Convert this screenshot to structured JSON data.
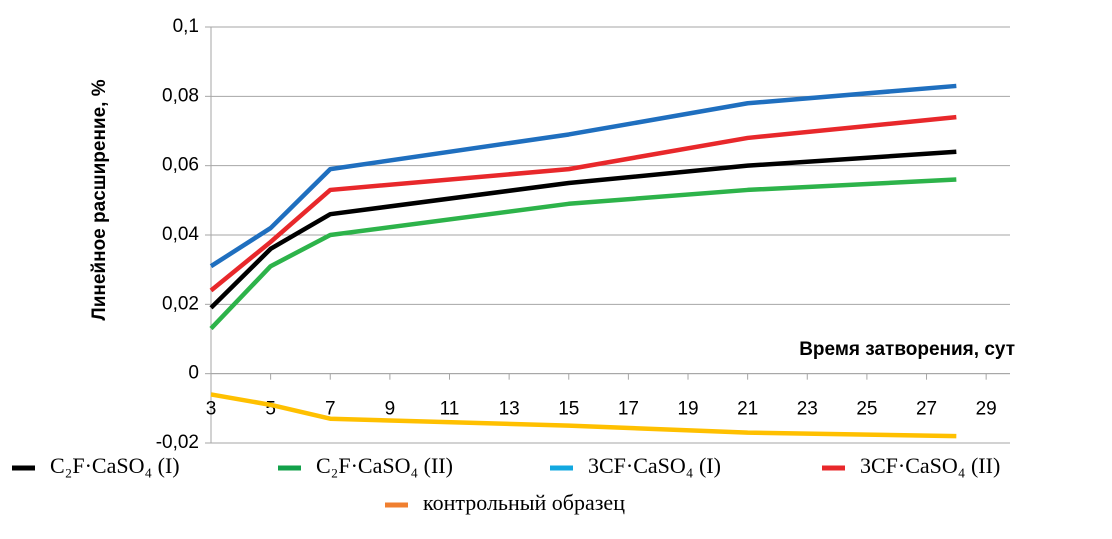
{
  "chart_data": {
    "type": "line",
    "y_label": "Линейное расширение, %",
    "x_label": "Время затворения, сут",
    "x": [
      3,
      5,
      7,
      15,
      21,
      28
    ],
    "xlim": [
      3,
      29.8
    ],
    "xticks": [
      3,
      5,
      7,
      9,
      11,
      13,
      15,
      17,
      19,
      21,
      23,
      25,
      27,
      29
    ],
    "ylim": [
      -0.02,
      0.1
    ],
    "yticks": [
      {
        "value": -0.02,
        "label": "-0,02"
      },
      0,
      {
        "value": 0.02,
        "label": "0,02"
      },
      {
        "value": 0.04,
        "label": "0,04"
      },
      {
        "value": 0.06,
        "label": "0,06"
      },
      {
        "value": 0.08,
        "label": "0,08"
      },
      {
        "value": 0.1,
        "label": "0,1"
      }
    ],
    "grid": true,
    "series": [
      {
        "name": "C₂F·CaSO₄ (I)",
        "color": "#000000",
        "legend_color": "#000000",
        "values": [
          0.019,
          0.036,
          0.046,
          0.055,
          0.06,
          0.064
        ]
      },
      {
        "name": "C₂F·CaSO₄ (II)",
        "color": "#2db34a",
        "legend_color": "#12a14a",
        "values": [
          0.013,
          0.031,
          0.04,
          0.049,
          0.053,
          0.056
        ]
      },
      {
        "name": "3CF·CaSO₄ (I)",
        "color": "#1f6fbf",
        "legend_color": "#12a8e0",
        "values": [
          0.031,
          0.042,
          0.059,
          0.069,
          0.078,
          0.083
        ]
      },
      {
        "name": "3CF·CaSO₄ (II)",
        "color": "#e8282b",
        "legend_color": "#e8282b",
        "values": [
          0.024,
          0.038,
          0.053,
          0.059,
          0.068,
          0.074
        ]
      },
      {
        "name": "контрольный образец",
        "color": "#ffc000",
        "legend_color": "#f07f2f",
        "values": [
          -0.006,
          -0.009,
          -0.013,
          -0.015,
          -0.017,
          -0.018
        ]
      }
    ]
  }
}
